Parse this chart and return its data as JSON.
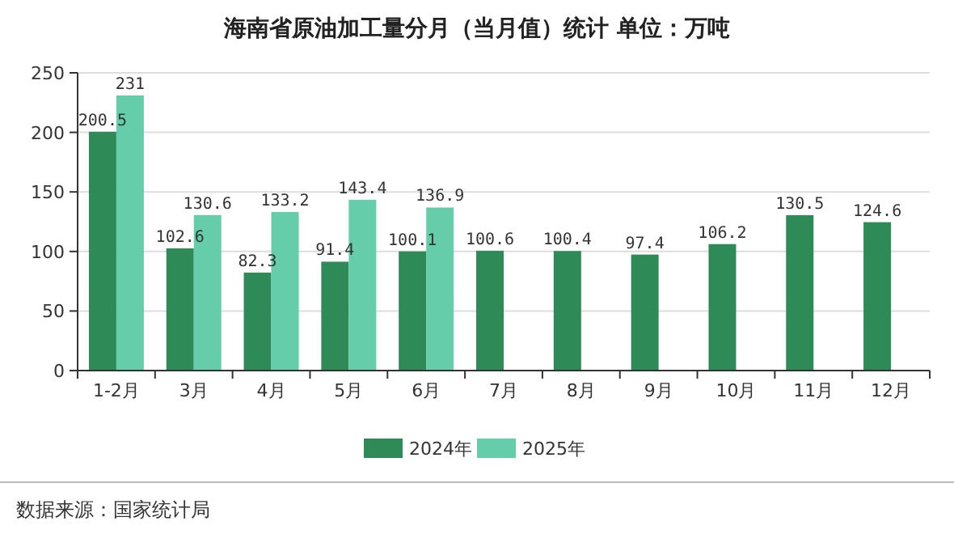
{
  "chart_data": {
    "type": "bar",
    "title": "海南省原油加工量分月（当月值）统计 单位：万吨",
    "categories": [
      "1-2月",
      "3月",
      "4月",
      "5月",
      "6月",
      "7月",
      "8月",
      "9月",
      "10月",
      "11月",
      "12月"
    ],
    "series": [
      {
        "name": "2024年",
        "color": "#2e8b57",
        "values": [
          200.5,
          102.6,
          82.3,
          91.4,
          100.1,
          100.6,
          100.4,
          97.4,
          106.2,
          130.5,
          124.6
        ]
      },
      {
        "name": "2025年",
        "color": "#66cdaa",
        "values": [
          231,
          130.6,
          133.2,
          143.4,
          136.9,
          null,
          null,
          null,
          null,
          null,
          null
        ]
      }
    ],
    "ylim": [
      0,
      250
    ],
    "yticks": [
      0,
      50,
      100,
      150,
      200,
      250
    ],
    "grid": "y",
    "legend": "bottom",
    "data_labels": true,
    "annotations": [
      "数据来源：国家统计局"
    ]
  }
}
